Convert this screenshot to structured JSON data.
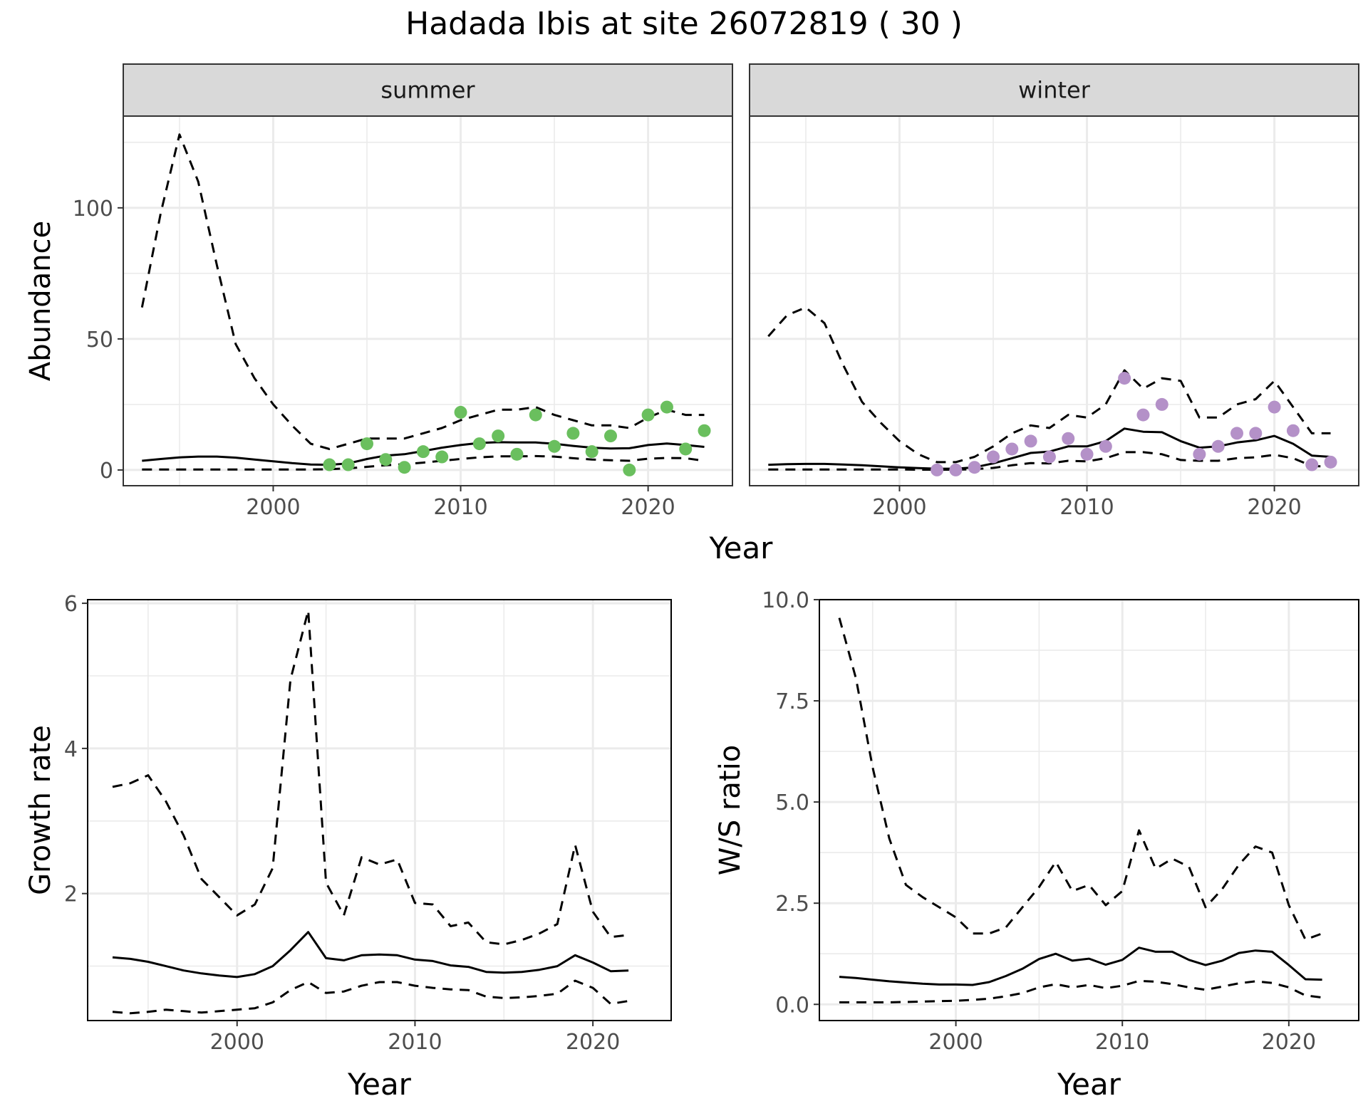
{
  "title": "Hadada Ibis at site 26072819 ( 30 )",
  "chart_data": [
    {
      "type": "line",
      "panel": "summer",
      "xlabel": "Year",
      "ylabel": "Abundance",
      "xlim": [
        1992,
        2024.5
      ],
      "ylim": [
        -6,
        135
      ],
      "xticks": [
        2000,
        2010,
        2020
      ],
      "yticks": [
        0,
        50,
        100
      ],
      "point_color": "#6abf5e",
      "series": [
        {
          "name": "",
          "style": "solid",
          "x": [
            1993,
            1994,
            1995,
            1996,
            1997,
            1998,
            1999,
            2000,
            2001,
            2002,
            2003,
            2004,
            2005,
            2006,
            2007,
            2008,
            2009,
            2010,
            2011,
            2012,
            2013,
            2014,
            2015,
            2016,
            2017,
            2018,
            2019,
            2020,
            2021,
            2022,
            2023
          ],
          "values": [
            3.5,
            4.2,
            4.8,
            5.1,
            5.1,
            4.7,
            4.0,
            3.3,
            2.6,
            2.1,
            2.0,
            2.5,
            4.2,
            5.5,
            6.0,
            7.2,
            8.5,
            9.5,
            10.3,
            10.6,
            10.5,
            10.5,
            10.0,
            9.2,
            8.5,
            8.2,
            8.3,
            9.5,
            10.1,
            9.5,
            8.8
          ]
        },
        {
          "name": "",
          "style": "dashed",
          "x": [
            1993,
            1994,
            1995,
            1996,
            1997,
            1998,
            1999,
            2000,
            2001,
            2002,
            2003,
            2004,
            2005,
            2006,
            2007,
            2008,
            2009,
            2010,
            2011,
            2012,
            2013,
            2014,
            2015,
            2016,
            2017,
            2018,
            2019,
            2020,
            2021,
            2022,
            2023
          ],
          "values": [
            62,
            98,
            128,
            110,
            78,
            48,
            35,
            25,
            17,
            10,
            8,
            10,
            12,
            12,
            12,
            14,
            16,
            19,
            21,
            23,
            23,
            24,
            21,
            19,
            17,
            17,
            16,
            20,
            23,
            21,
            21
          ]
        },
        {
          "name": "",
          "style": "dashed",
          "x": [
            1993,
            1994,
            1995,
            1996,
            1997,
            1998,
            1999,
            2000,
            2001,
            2002,
            2003,
            2004,
            2005,
            2006,
            2007,
            2008,
            2009,
            2010,
            2011,
            2012,
            2013,
            2014,
            2015,
            2016,
            2017,
            2018,
            2019,
            2020,
            2021,
            2022,
            2023
          ],
          "values": [
            0.2,
            0.2,
            0.2,
            0.2,
            0.2,
            0.2,
            0.2,
            0.2,
            0.2,
            0.2,
            0.3,
            0.6,
            1.2,
            1.8,
            2.2,
            2.8,
            3.5,
            4.2,
            4.8,
            5.2,
            5.2,
            5.3,
            5.1,
            4.5,
            4.0,
            3.7,
            3.5,
            4.3,
            4.6,
            4.5,
            3.5
          ]
        }
      ],
      "points": {
        "x": [
          2003,
          2004,
          2005,
          2006,
          2007,
          2008,
          2009,
          2010,
          2011,
          2012,
          2013,
          2014,
          2015,
          2016,
          2017,
          2018,
          2019,
          2020,
          2021,
          2022,
          2023
        ],
        "y": [
          2,
          2,
          10,
          4,
          1,
          7,
          5,
          22,
          10,
          13,
          6,
          21,
          9,
          14,
          7,
          13,
          0,
          21,
          24,
          8,
          15
        ]
      }
    },
    {
      "type": "line",
      "panel": "winter",
      "xlabel": "Year",
      "ylabel": "",
      "xlim": [
        1992,
        2024.5
      ],
      "ylim": [
        -6,
        135
      ],
      "xticks": [
        2000,
        2010,
        2020
      ],
      "yticks": [
        0,
        50,
        100
      ],
      "point_color": "#b491c8",
      "series": [
        {
          "name": "",
          "style": "solid",
          "x": [
            1993,
            1994,
            1995,
            1996,
            1997,
            1998,
            1999,
            2000,
            2001,
            2002,
            2003,
            2004,
            2005,
            2006,
            2007,
            2008,
            2009,
            2010,
            2011,
            2012,
            2013,
            2014,
            2015,
            2016,
            2017,
            2018,
            2019,
            2020,
            2021,
            2022,
            2023
          ],
          "values": [
            2.0,
            2.2,
            2.3,
            2.3,
            2.1,
            1.8,
            1.4,
            1.0,
            0.7,
            0.5,
            0.5,
            1.0,
            2.5,
            4.5,
            6.5,
            7.0,
            9.0,
            9.0,
            11.0,
            15.8,
            14.6,
            14.4,
            11.0,
            8.5,
            9.0,
            10.5,
            11.3,
            13.0,
            10.0,
            5.5,
            5.0
          ]
        },
        {
          "name": "",
          "style": "dashed",
          "x": [
            1993,
            1994,
            1995,
            1996,
            1997,
            1998,
            1999,
            2000,
            2001,
            2002,
            2003,
            2004,
            2005,
            2006,
            2007,
            2008,
            2009,
            2010,
            2011,
            2012,
            2013,
            2014,
            2015,
            2016,
            2017,
            2018,
            2019,
            2020,
            2021,
            2022,
            2023
          ],
          "values": [
            51,
            59,
            62,
            56,
            40,
            26,
            18,
            11,
            6,
            3,
            3,
            5,
            9,
            14,
            17,
            16,
            21,
            20,
            25,
            38,
            31,
            35,
            34,
            20,
            20,
            25,
            27,
            34,
            24,
            14,
            14
          ]
        },
        {
          "name": "",
          "style": "dashed",
          "x": [
            1993,
            1994,
            1995,
            1996,
            1997,
            1998,
            1999,
            2000,
            2001,
            2002,
            2003,
            2004,
            2005,
            2006,
            2007,
            2008,
            2009,
            2010,
            2011,
            2012,
            2013,
            2014,
            2015,
            2016,
            2017,
            2018,
            2019,
            2020,
            2021,
            2022,
            2023
          ],
          "values": [
            0.2,
            0.2,
            0.2,
            0.2,
            0.2,
            0.2,
            0.2,
            0.2,
            0.1,
            0.1,
            0.1,
            0.3,
            0.8,
            1.8,
            2.6,
            2.5,
            3.5,
            3.3,
            4.5,
            6.8,
            6.8,
            6.0,
            3.8,
            3.5,
            3.5,
            4.5,
            4.8,
            5.8,
            4.5,
            1.5,
            1.3
          ]
        }
      ],
      "points": {
        "x": [
          2002,
          2003,
          2004,
          2005,
          2006,
          2007,
          2008,
          2009,
          2010,
          2011,
          2012,
          2013,
          2014,
          2016,
          2017,
          2018,
          2019,
          2020,
          2021,
          2022,
          2023
        ],
        "y": [
          0,
          0,
          1,
          5,
          8,
          11,
          5,
          12,
          6,
          9,
          35,
          21,
          25,
          6,
          9,
          14,
          14,
          24,
          15,
          2,
          3
        ]
      }
    },
    {
      "type": "line",
      "panel": "growth",
      "xlabel": "Year",
      "ylabel": "Growth rate",
      "xlim": [
        1991.6,
        2024.4
      ],
      "ylim": [
        0.25,
        6.05
      ],
      "xticks": [
        2000,
        2010,
        2020
      ],
      "yticks": [
        2,
        4,
        6
      ],
      "series": [
        {
          "name": "",
          "style": "solid",
          "x": [
            1993,
            1994,
            1995,
            1996,
            1997,
            1998,
            1999,
            2000,
            2001,
            2002,
            2003,
            2004,
            2005,
            2006,
            2007,
            2008,
            2009,
            2010,
            2011,
            2012,
            2013,
            2014,
            2015,
            2016,
            2017,
            2018,
            2019,
            2020,
            2021,
            2022
          ],
          "values": [
            1.12,
            1.1,
            1.06,
            1.0,
            0.94,
            0.9,
            0.87,
            0.85,
            0.89,
            1.0,
            1.22,
            1.47,
            1.11,
            1.08,
            1.15,
            1.16,
            1.15,
            1.09,
            1.07,
            1.01,
            0.99,
            0.92,
            0.91,
            0.92,
            0.95,
            1.0,
            1.15,
            1.05,
            0.93,
            0.94
          ]
        },
        {
          "name": "",
          "style": "dashed",
          "x": [
            1993,
            1994,
            1995,
            1996,
            1997,
            1998,
            1999,
            2000,
            2001,
            2002,
            2003,
            2004,
            2005,
            2006,
            2007,
            2008,
            2009,
            2010,
            2011,
            2012,
            2013,
            2014,
            2015,
            2016,
            2017,
            2018,
            2019,
            2020,
            2021,
            2022
          ],
          "values": [
            3.47,
            3.52,
            3.63,
            3.27,
            2.8,
            2.2,
            1.95,
            1.7,
            1.85,
            2.35,
            4.95,
            5.9,
            2.15,
            1.7,
            2.5,
            2.4,
            2.47,
            1.87,
            1.85,
            1.55,
            1.6,
            1.33,
            1.3,
            1.36,
            1.45,
            1.58,
            2.67,
            1.75,
            1.4,
            1.43
          ]
        },
        {
          "name": "",
          "style": "dashed",
          "x": [
            1993,
            1994,
            1995,
            1996,
            1997,
            1998,
            1999,
            2000,
            2001,
            2002,
            2003,
            2004,
            2005,
            2006,
            2007,
            2008,
            2009,
            2010,
            2011,
            2012,
            2013,
            2014,
            2015,
            2016,
            2017,
            2018,
            2019,
            2020,
            2021,
            2022
          ],
          "values": [
            0.37,
            0.35,
            0.37,
            0.4,
            0.38,
            0.36,
            0.38,
            0.4,
            0.42,
            0.5,
            0.67,
            0.78,
            0.63,
            0.65,
            0.73,
            0.78,
            0.78,
            0.73,
            0.7,
            0.68,
            0.67,
            0.58,
            0.56,
            0.57,
            0.59,
            0.62,
            0.8,
            0.7,
            0.48,
            0.52
          ]
        }
      ]
    },
    {
      "type": "line",
      "panel": "ws-ratio",
      "xlabel": "Year",
      "ylabel": "W/S ratio",
      "xlim": [
        1991.8,
        2024.2
      ],
      "ylim": [
        -0.4,
        10.0
      ],
      "xticks": [
        2000,
        2010,
        2020
      ],
      "yticks": [
        0.0,
        2.5,
        5.0,
        7.5,
        10.0
      ],
      "ytick_labels": [
        "0.0",
        "2.5",
        "5.0",
        "7.5",
        "10.0"
      ],
      "series": [
        {
          "name": "",
          "style": "solid",
          "x": [
            1993,
            1994,
            1995,
            1996,
            1997,
            1998,
            1999,
            2000,
            2001,
            2002,
            2003,
            2004,
            2005,
            2006,
            2007,
            2008,
            2009,
            2010,
            2011,
            2012,
            2013,
            2014,
            2015,
            2016,
            2017,
            2018,
            2019,
            2020,
            2021,
            2022
          ],
          "values": [
            0.68,
            0.65,
            0.61,
            0.57,
            0.54,
            0.51,
            0.49,
            0.49,
            0.48,
            0.55,
            0.7,
            0.88,
            1.12,
            1.25,
            1.08,
            1.13,
            0.98,
            1.1,
            1.4,
            1.3,
            1.3,
            1.1,
            0.97,
            1.08,
            1.27,
            1.33,
            1.3,
            0.97,
            0.62,
            0.61
          ]
        },
        {
          "name": "",
          "style": "dashed",
          "x": [
            1993,
            1994,
            1995,
            1996,
            1997,
            1998,
            1999,
            2000,
            2001,
            2002,
            2003,
            2004,
            2005,
            2006,
            2007,
            2008,
            2009,
            2010,
            2011,
            2012,
            2013,
            2014,
            2015,
            2016,
            2017,
            2018,
            2019,
            2020,
            2021,
            2022
          ],
          "values": [
            9.55,
            8.05,
            5.85,
            4.1,
            2.95,
            2.65,
            2.4,
            2.15,
            1.75,
            1.75,
            1.9,
            2.4,
            2.9,
            3.52,
            2.8,
            2.95,
            2.45,
            2.8,
            4.3,
            3.35,
            3.6,
            3.4,
            2.4,
            2.85,
            3.45,
            3.9,
            3.75,
            2.45,
            1.6,
            1.75
          ]
        },
        {
          "name": "",
          "style": "dashed",
          "x": [
            1993,
            1994,
            1995,
            1996,
            1997,
            1998,
            1999,
            2000,
            2001,
            2002,
            2003,
            2004,
            2005,
            2006,
            2007,
            2008,
            2009,
            2010,
            2011,
            2012,
            2013,
            2014,
            2015,
            2016,
            2017,
            2018,
            2019,
            2020,
            2021,
            2022
          ],
          "values": [
            0.05,
            0.05,
            0.05,
            0.05,
            0.06,
            0.07,
            0.08,
            0.09,
            0.11,
            0.14,
            0.2,
            0.28,
            0.42,
            0.5,
            0.42,
            0.48,
            0.4,
            0.46,
            0.58,
            0.56,
            0.5,
            0.42,
            0.36,
            0.44,
            0.52,
            0.57,
            0.53,
            0.42,
            0.22,
            0.17
          ]
        }
      ]
    }
  ]
}
